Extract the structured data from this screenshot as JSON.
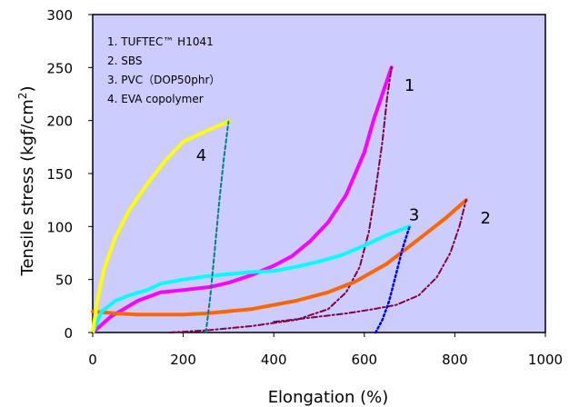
{
  "chart_data": {
    "type": "line",
    "title": "",
    "xlabel": "Elongation (%)",
    "ylabel": "Tensile stress (kgf/cm2)",
    "xlim": [
      0,
      1000
    ],
    "ylim": [
      0,
      300
    ],
    "xticks": [
      "0",
      "200",
      "400",
      "600",
      "800",
      "1000"
    ],
    "yticks": [
      "0",
      "50",
      "100",
      "150",
      "200",
      "250",
      "300"
    ],
    "plot_background": "#ccccff",
    "grid": false,
    "legend": {
      "placement": "top-left",
      "items": [
        "1. TUFTEC™ H1041",
        "2. SBS",
        "3. PVC（DOP50phr）",
        "4. EVA copolymer"
      ]
    },
    "series": [
      {
        "id": "1",
        "color": "#ff00ff",
        "style": "solid",
        "x": [
          0,
          40,
          100,
          150,
          200,
          260,
          300,
          350,
          400,
          440,
          480,
          520,
          560,
          600,
          620,
          640,
          660
        ],
        "y": [
          0,
          15,
          30,
          38,
          40,
          43,
          47,
          54,
          63,
          72,
          86,
          104,
          130,
          170,
          200,
          225,
          250
        ]
      },
      {
        "id": "1-unload",
        "color": "#800040",
        "style": "dashdot",
        "x": [
          170,
          250,
          350,
          450,
          520,
          560,
          590,
          610,
          625,
          640,
          650,
          660
        ],
        "y": [
          0,
          2,
          6,
          12,
          22,
          38,
          62,
          95,
          135,
          180,
          220,
          250
        ]
      },
      {
        "id": "2",
        "color": "#ff6600",
        "style": "solid",
        "x": [
          0,
          50,
          100,
          200,
          250,
          350,
          450,
          520,
          580,
          650,
          720,
          780,
          825
        ],
        "y": [
          20,
          18,
          17,
          17,
          18,
          22,
          30,
          38,
          48,
          65,
          88,
          108,
          125
        ]
      },
      {
        "id": "2-unload",
        "color": "#800040",
        "style": "dashdot",
        "x": [
          400,
          480,
          560,
          620,
          670,
          720,
          760,
          790,
          810,
          825
        ],
        "y": [
          10,
          14,
          18,
          22,
          26,
          35,
          52,
          75,
          100,
          125
        ]
      },
      {
        "id": "3",
        "color": "#00ffff",
        "style": "solid",
        "x": [
          0,
          20,
          50,
          80,
          120,
          150,
          200,
          250,
          300,
          350,
          400,
          450,
          500,
          550,
          600,
          650,
          700
        ],
        "y": [
          0,
          20,
          30,
          35,
          40,
          46,
          50,
          53,
          55,
          57,
          58,
          62,
          67,
          73,
          82,
          92,
          100
        ]
      },
      {
        "id": "3-unload",
        "color": "#0000ff",
        "style": "dotted",
        "x": [
          625,
          640,
          655,
          670,
          685,
          700
        ],
        "y": [
          0,
          12,
          30,
          55,
          80,
          100
        ]
      },
      {
        "id": "4",
        "color": "#ffff00",
        "style": "solid",
        "x": [
          0,
          10,
          25,
          50,
          80,
          120,
          160,
          200,
          250,
          300
        ],
        "y": [
          0,
          30,
          60,
          90,
          115,
          140,
          162,
          180,
          190,
          199
        ]
      },
      {
        "id": "4-unload",
        "color": "#008080",
        "style": "dashed",
        "x": [
          250,
          260,
          270,
          280,
          290,
          300
        ],
        "y": [
          0,
          35,
          80,
          125,
          165,
          199
        ]
      }
    ],
    "annotations": [
      {
        "text": "1",
        "x": 700,
        "y": 228
      },
      {
        "text": "2",
        "x": 868,
        "y": 103
      },
      {
        "text": "3",
        "x": 710,
        "y": 106
      },
      {
        "text": "4",
        "x": 240,
        "y": 162
      }
    ]
  }
}
